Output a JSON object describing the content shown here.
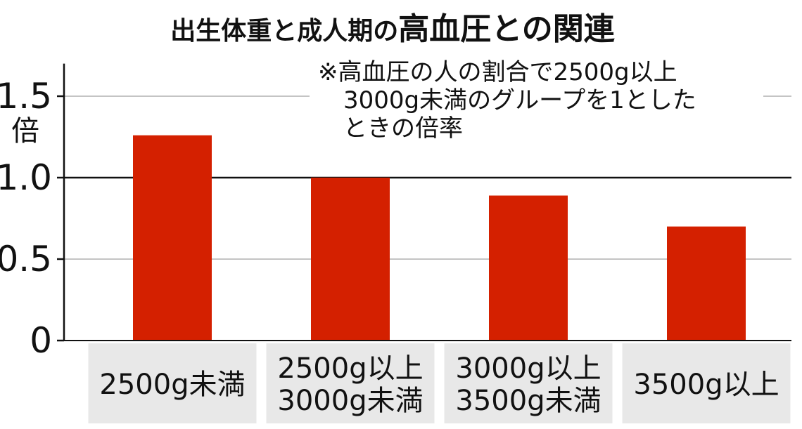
{
  "chart_data": {
    "type": "bar",
    "title": "出生体重と成人期の高血圧との関連",
    "title_parts": [
      "出生体重と成人期の",
      "高血圧との関連"
    ],
    "note_lines": [
      "※高血圧の人の割合で2500g以上",
      "3000g未満のグループを1とした",
      "ときの倍率"
    ],
    "ylabel": "倍",
    "categories": [
      [
        "2500g未満"
      ],
      [
        "2500g以上",
        "3000g未満"
      ],
      [
        "3000g以上",
        "3500g未満"
      ],
      [
        "3500g以上"
      ]
    ],
    "values": [
      1.26,
      1.0,
      0.89,
      0.7
    ],
    "ylim": [
      0,
      1.7
    ],
    "yticks": [
      0,
      0.5,
      1.0,
      1.5
    ],
    "ytick_labels": [
      "0",
      "0.5",
      "1.0",
      "1.5"
    ],
    "reference_line": 1.0,
    "grid": true,
    "bar_color": "#d42000",
    "category_box_color": "#e8e8e8",
    "grid_color": "#a0a0a0",
    "reference_line_color": "#111111"
  }
}
